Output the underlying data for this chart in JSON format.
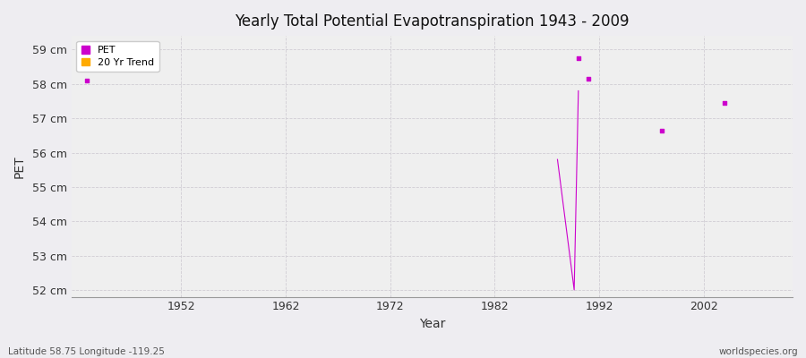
{
  "title": "Yearly Total Potential Evapotranspiration 1943 - 2009",
  "xlabel": "Year",
  "ylabel": "PET",
  "footer_left": "Latitude 58.75 Longitude -119.25",
  "footer_right": "worldspecies.org",
  "ylim": [
    51.8,
    59.4
  ],
  "xlim": [
    1941.5,
    2010.5
  ],
  "yticks": [
    52,
    53,
    54,
    55,
    56,
    57,
    58,
    59
  ],
  "ytick_labels": [
    "52 cm",
    "53 cm",
    "54 cm",
    "55 cm",
    "56 cm",
    "57 cm",
    "58 cm",
    "59 cm"
  ],
  "xticks": [
    1952,
    1962,
    1972,
    1982,
    1992,
    2002
  ],
  "bg_color": "#eeedf1",
  "plot_bg_color": "#efefef",
  "grid_color": "#d0cdd4",
  "pet_color": "#cc00cc",
  "trend_color": "#ffaa00",
  "pet_markersize": 3.5,
  "pet_linewidth": 0.8,
  "scatter_years": [
    1943,
    1990,
    1991,
    1998,
    2004
  ],
  "scatter_values": [
    58.1,
    58.75,
    58.15,
    56.65,
    57.45
  ],
  "line_years": [
    1988,
    1989.6,
    1990
  ],
  "line_values": [
    55.8,
    52.0,
    57.8
  ]
}
